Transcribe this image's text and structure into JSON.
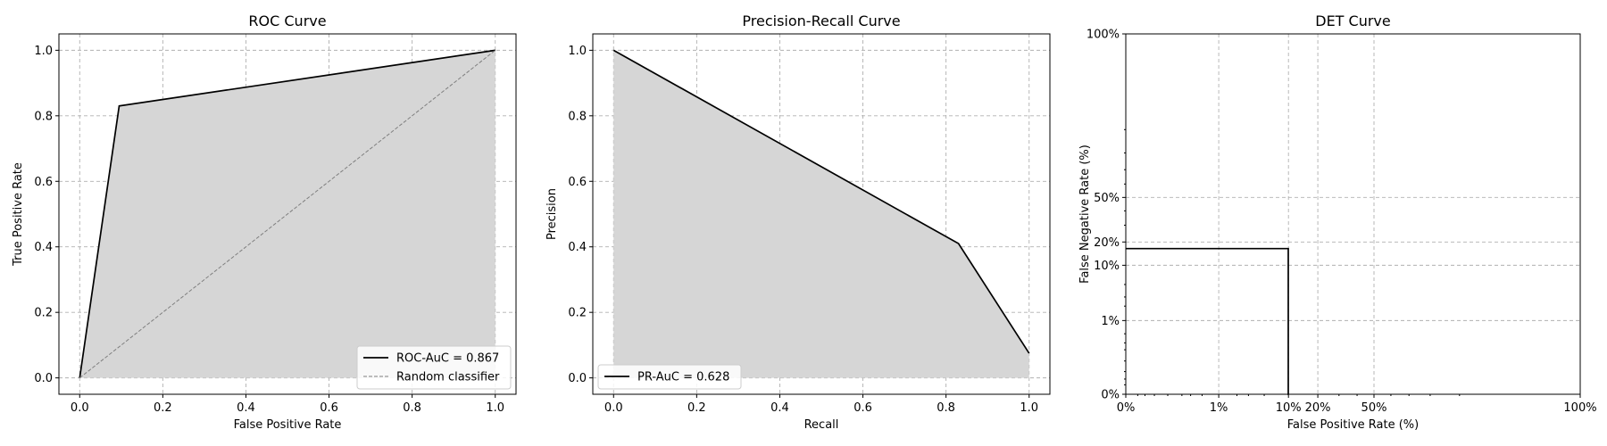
{
  "chart_data": [
    {
      "type": "area",
      "title": "ROC Curve",
      "xlabel": "False Positive Rate",
      "ylabel": "True Positive Rate",
      "xlim": [
        -0.05,
        1.05
      ],
      "ylim": [
        -0.05,
        1.05
      ],
      "xticks": [
        0.0,
        0.2,
        0.4,
        0.6,
        0.8,
        1.0
      ],
      "xtick_labels": [
        "0.0",
        "0.2",
        "0.4",
        "0.6",
        "0.8",
        "1.0"
      ],
      "yticks": [
        0.0,
        0.2,
        0.4,
        0.6,
        0.8,
        1.0
      ],
      "ytick_labels": [
        "0.0",
        "0.2",
        "0.4",
        "0.6",
        "0.8",
        "1.0"
      ],
      "grid": true,
      "legend_position": "bottom-right",
      "series": [
        {
          "name": "ROC-AuC = 0.867",
          "style": "solid",
          "color": "#000000",
          "fill": "#d6d6d6",
          "x": [
            0.0,
            0.095,
            1.0
          ],
          "y": [
            0.0,
            0.83,
            1.0
          ]
        },
        {
          "name": "Random classifier",
          "style": "dashed",
          "color": "#7f7f7f",
          "x": [
            0.0,
            1.0
          ],
          "y": [
            0.0,
            1.0
          ]
        }
      ]
    },
    {
      "type": "area",
      "title": "Precision-Recall Curve",
      "xlabel": "Recall",
      "ylabel": "Precision",
      "xlim": [
        -0.05,
        1.05
      ],
      "ylim": [
        -0.05,
        1.05
      ],
      "xticks": [
        0.0,
        0.2,
        0.4,
        0.6,
        0.8,
        1.0
      ],
      "xtick_labels": [
        "0.0",
        "0.2",
        "0.4",
        "0.6",
        "0.8",
        "1.0"
      ],
      "yticks": [
        0.0,
        0.2,
        0.4,
        0.6,
        0.8,
        1.0
      ],
      "ytick_labels": [
        "0.0",
        "0.2",
        "0.4",
        "0.6",
        "0.8",
        "1.0"
      ],
      "grid": true,
      "legend_position": "bottom-left",
      "series": [
        {
          "name": "PR-AuC = 0.628",
          "style": "solid",
          "color": "#000000",
          "fill": "#d6d6d6",
          "x": [
            0.0,
            0.83,
            1.0
          ],
          "y": [
            1.0,
            0.41,
            0.075
          ]
        }
      ]
    },
    {
      "type": "line",
      "title": "DET Curve",
      "xlabel": "False Positive Rate (%)",
      "ylabel": "False Negative Rate (%)",
      "scale": "probit",
      "xlim": [
        0.0001,
        0.999
      ],
      "ylim": [
        0.0001,
        0.999
      ],
      "xticks": [
        0.0001,
        0.01,
        0.1,
        0.2,
        0.5,
        0.999
      ],
      "xtick_labels": [
        "0%",
        "1%",
        "10%",
        "20%",
        "50%",
        "100%"
      ],
      "yticks": [
        0.0001,
        0.01,
        0.1,
        0.2,
        0.5,
        0.999
      ],
      "ytick_labels": [
        "0%",
        "1%",
        "10%",
        "20%",
        "50%",
        "100%"
      ],
      "grid": true,
      "series": [
        {
          "style": "solid",
          "color": "#000000",
          "x": [
            0.0001,
            0.0995,
            0.0995,
            0.1001
          ],
          "y": [
            0.167,
            0.167,
            0.0001,
            0.0001
          ]
        }
      ]
    }
  ]
}
